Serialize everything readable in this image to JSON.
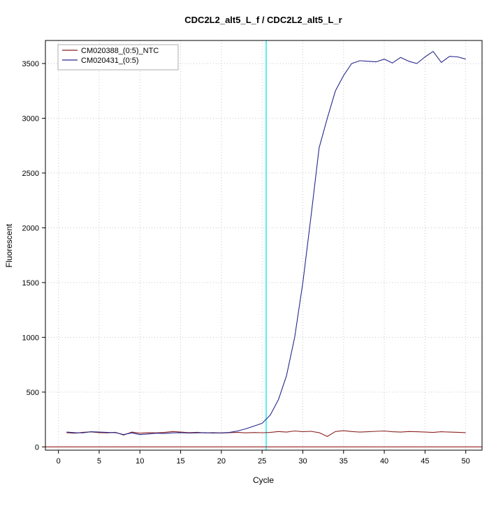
{
  "figure": {
    "title": "CDC2L2_alt5_L_f / CDC2L2_alt5_L_r"
  },
  "chart_data": {
    "type": "line",
    "title": "CDC2L2_alt5_L_f / CDC2L2_alt5_L_r",
    "xlabel": "Cycle",
    "ylabel": "Fluorescent",
    "xlim": [
      -1.6,
      52
    ],
    "ylim": [
      -30,
      3710
    ],
    "xticks": [
      0,
      5,
      10,
      15,
      20,
      25,
      30,
      35,
      40,
      45,
      50
    ],
    "yticks": [
      0,
      500,
      1000,
      1500,
      2000,
      2500,
      3000,
      3500
    ],
    "grid": true,
    "grid_color": "#c8c8c8",
    "axis_color": "#000000",
    "background": "#ffffff",
    "legend_position": "top-left",
    "vline": {
      "x": 25.5,
      "color": "#00e8e8",
      "name": "threshold-cycle-line"
    },
    "hline": {
      "y": 0,
      "color": "#8b0000",
      "name": "baseline-threshold-line"
    },
    "x": [
      1,
      2,
      3,
      4,
      5,
      6,
      7,
      8,
      9,
      10,
      11,
      12,
      13,
      14,
      15,
      16,
      17,
      18,
      19,
      20,
      21,
      22,
      23,
      24,
      25,
      26,
      27,
      28,
      29,
      30,
      31,
      32,
      33,
      34,
      35,
      36,
      37,
      38,
      39,
      40,
      41,
      42,
      43,
      44,
      45,
      46,
      47,
      48,
      49,
      50
    ],
    "series": [
      {
        "name": "CM020388_(0:5)_NTC",
        "color": "#8b2222",
        "values": [
          130,
          125,
          133,
          137,
          130,
          128,
          133,
          108,
          135,
          125,
          130,
          128,
          132,
          140,
          135,
          130,
          133,
          128,
          130,
          127,
          130,
          133,
          128,
          131,
          129,
          132,
          140,
          135,
          145,
          138,
          142,
          130,
          95,
          140,
          148,
          140,
          135,
          138,
          142,
          145,
          138,
          135,
          140,
          138,
          135,
          132,
          138,
          135,
          133,
          130
        ]
      },
      {
        "name": "CM020431_(0:5)",
        "color": "#27278b",
        "values": [
          135,
          130,
          128,
          138,
          135,
          132,
          130,
          112,
          128,
          112,
          118,
          125,
          122,
          128,
          130,
          126,
          128,
          130,
          126,
          128,
          132,
          145,
          165,
          190,
          215,
          290,
          430,
          650,
          1000,
          1500,
          2100,
          2730,
          3000,
          3250,
          3390,
          3500,
          3525,
          3520,
          3515,
          3540,
          3505,
          3555,
          3520,
          3500,
          3560,
          3610,
          3510,
          3565,
          3560,
          3540
        ]
      }
    ]
  }
}
